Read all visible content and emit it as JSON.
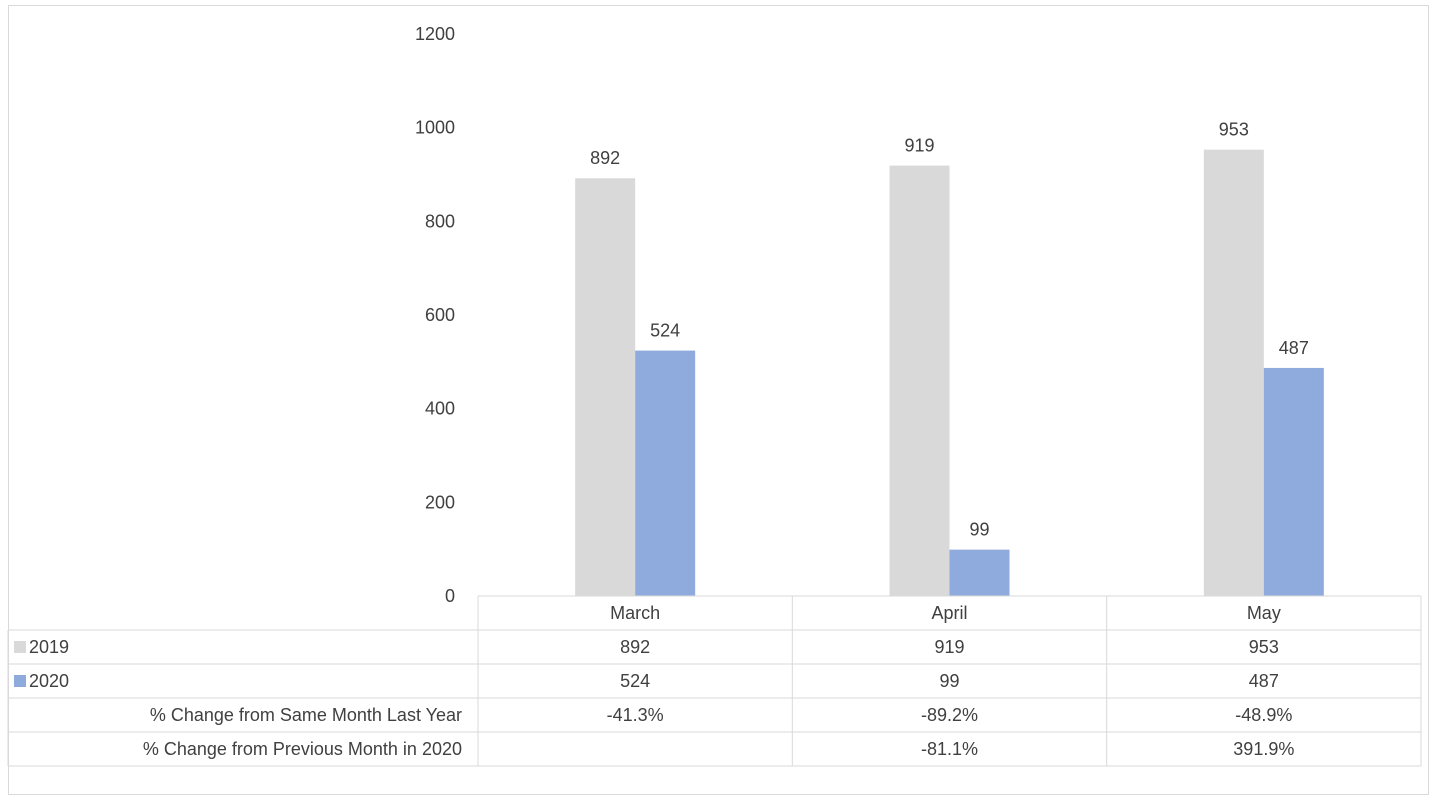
{
  "chart_data": {
    "type": "bar",
    "categories": [
      "March",
      "April",
      "May"
    ],
    "series": [
      {
        "name": "2019",
        "values": [
          892,
          919,
          953
        ],
        "color": "#d9d9d9"
      },
      {
        "name": "2020",
        "values": [
          524,
          99,
          487
        ],
        "color": "#8faadc"
      }
    ],
    "y_ticks": [
      0,
      200,
      400,
      600,
      800,
      1000,
      1200
    ],
    "ylim": [
      0,
      1200
    ],
    "grid": false,
    "data_table": {
      "rows": [
        {
          "label": "2019",
          "legend_key": "2019",
          "cells": [
            "892",
            "919",
            "953"
          ]
        },
        {
          "label": "2020",
          "legend_key": "2020",
          "cells": [
            "524",
            "99",
            "487"
          ]
        },
        {
          "label": "% Change from Same Month Last Year",
          "legend_key": null,
          "cells": [
            "-41.3%",
            "-89.2%",
            "-48.9%"
          ]
        },
        {
          "label": "% Change from Previous Month in 2020",
          "legend_key": null,
          "cells": [
            "",
            "-81.1%",
            "391.9%"
          ]
        }
      ]
    }
  }
}
